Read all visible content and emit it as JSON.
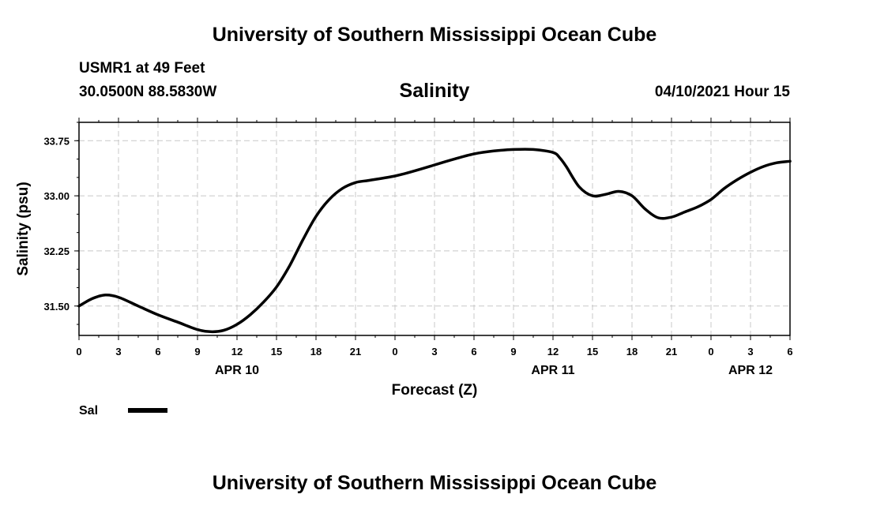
{
  "header": {
    "title": "University of Southern Mississippi Ocean Cube",
    "station": "USMR1 at 49 Feet",
    "coordinates": "30.0500N  88.5830W",
    "parameter": "Salinity",
    "datetime": "04/10/2021 Hour 15"
  },
  "footer": {
    "title": "University of Southern Mississippi Ocean Cube"
  },
  "chart_data": {
    "type": "line",
    "title": "Salinity",
    "xlabel": "Forecast (Z)",
    "ylabel": "Salinity (psu)",
    "x_unit": "hours since 04/09/2021 00Z",
    "xlim": [
      0,
      54
    ],
    "ylim": [
      31.1,
      34.0
    ],
    "grid": true,
    "x_ticks": [
      0,
      3,
      6,
      9,
      12,
      15,
      18,
      21,
      24,
      27,
      30,
      33,
      36,
      39,
      42,
      45,
      48,
      51,
      54
    ],
    "x_tick_labels": [
      "0",
      "3",
      "6",
      "9",
      "12",
      "15",
      "18",
      "21",
      "0",
      "3",
      "6",
      "9",
      "12",
      "15",
      "18",
      "21",
      "0",
      "3",
      "6"
    ],
    "y_ticks": [
      31.5,
      32.25,
      33.0,
      33.75
    ],
    "y_tick_labels": [
      "31.50",
      "32.25",
      "33.00",
      "33.75"
    ],
    "date_labels": [
      {
        "x": 12,
        "label": "APR 10"
      },
      {
        "x": 36,
        "label": "APR 11"
      },
      {
        "x": 51,
        "label": "APR 12"
      }
    ],
    "legend": {
      "position": "bottom-left",
      "label": "Sal",
      "color": "#000000"
    },
    "series": [
      {
        "name": "Sal",
        "color": "#000000",
        "x": [
          0,
          1,
          2,
          3,
          4.5,
          6,
          7.5,
          9,
          10,
          11,
          12,
          13,
          14,
          15,
          16,
          17,
          18,
          19,
          20,
          21,
          22,
          24,
          25.5,
          27,
          28.5,
          30,
          31.5,
          33,
          34.5,
          36,
          36.5,
          37,
          38,
          39,
          40,
          41,
          42,
          43,
          44,
          45,
          46,
          47,
          48,
          49,
          50,
          51,
          52,
          53,
          54
        ],
        "y": [
          31.5,
          31.6,
          31.65,
          31.62,
          31.5,
          31.38,
          31.28,
          31.18,
          31.15,
          31.17,
          31.25,
          31.38,
          31.55,
          31.76,
          32.05,
          32.4,
          32.72,
          32.95,
          33.1,
          33.18,
          33.21,
          33.27,
          33.34,
          33.42,
          33.5,
          33.57,
          33.61,
          33.63,
          33.63,
          33.59,
          33.52,
          33.4,
          33.12,
          33.0,
          33.02,
          33.06,
          33.0,
          32.82,
          32.7,
          32.71,
          32.78,
          32.85,
          32.95,
          33.1,
          33.22,
          33.32,
          33.4,
          33.45,
          33.47
        ]
      }
    ]
  }
}
